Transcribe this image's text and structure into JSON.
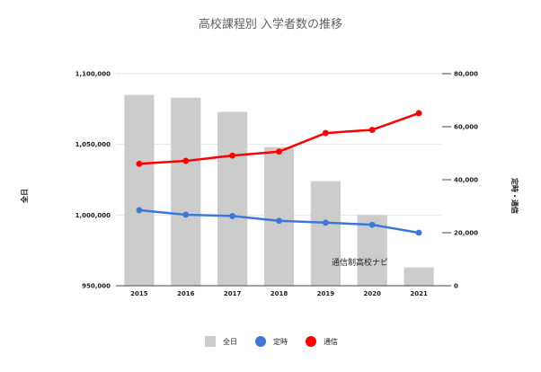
{
  "chart_data": {
    "type": "bar",
    "title": "高校課程別 入学者数の推移",
    "categories": [
      "2015",
      "2016",
      "2017",
      "2018",
      "2019",
      "2020",
      "2021"
    ],
    "y_left": {
      "label": "全日",
      "ylim": [
        950000,
        1100000
      ],
      "ticks": [
        "950,000",
        "1,000,000",
        "1,050,000",
        "1,100,000"
      ],
      "tick_values": [
        950000,
        1000000,
        1050000,
        1100000
      ]
    },
    "y_right": {
      "label": "定時・通信",
      "ylim": [
        0,
        80000
      ],
      "ticks": [
        "0",
        "20,000",
        "40,000",
        "60,000",
        "80,000"
      ],
      "tick_values": [
        0,
        20000,
        40000,
        60000,
        80000
      ]
    },
    "series": [
      {
        "name": "全日",
        "kind": "bar",
        "axis": "left",
        "color": "#cccccc",
        "values": [
          1085000,
          1083000,
          1073000,
          1048000,
          1024000,
          1000000,
          963000
        ]
      },
      {
        "name": "定時",
        "kind": "line",
        "axis": "right",
        "color": "#3c78d8",
        "values": [
          28500,
          26800,
          26300,
          24500,
          23800,
          23000,
          20000
        ]
      },
      {
        "name": "通信",
        "kind": "line",
        "axis": "right",
        "color": "#ff0000",
        "values": [
          46000,
          47100,
          49100,
          50600,
          57600,
          58800,
          65100
        ]
      }
    ],
    "annotation": "通信制高校ナビ",
    "legend_position": "bottom",
    "grid": true
  }
}
